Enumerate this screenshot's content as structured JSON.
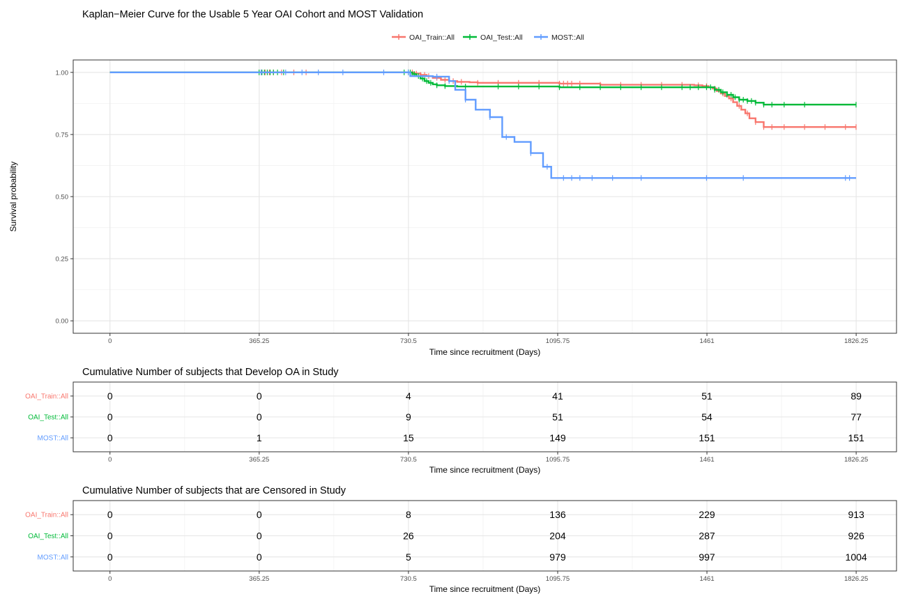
{
  "figure": {
    "title": "Kaplan−Meier Curve for the Usable 5 Year OAI Cohort and MOST Validation"
  },
  "colors": {
    "OAI_Train": "#F8766D",
    "OAI_Test": "#00BA38",
    "MOST": "#619CFF"
  },
  "chart_data": [
    {
      "type": "line",
      "title": "Kaplan−Meier Curve for the Usable 5 Year OAI Cohort and MOST Validation",
      "xlabel": "Time since recruitment (Days)",
      "ylabel": "Survival probability",
      "xlim": [
        -90,
        1925
      ],
      "ylim": [
        -0.05,
        1.05
      ],
      "x_ticks": [
        0,
        365.25,
        730.5,
        1095.75,
        1461,
        1826.25
      ],
      "x_tick_labels": [
        "0",
        "365.25",
        "730.5",
        "1095.75",
        "1461",
        "1826.25"
      ],
      "y_ticks": [
        0,
        0.25,
        0.5,
        0.75,
        1.0
      ],
      "y_tick_labels": [
        "0.00",
        "0.25",
        "0.50",
        "0.75",
        "1.00"
      ],
      "grid": true,
      "legend_position": "top",
      "series": [
        {
          "name": "OAI_Train::All",
          "step_x": [
            0,
            730,
            745,
            760,
            775,
            790,
            810,
            830,
            850,
            880,
            900,
            1100,
            1200,
            1430,
            1450,
            1465,
            1475,
            1485,
            1495,
            1505,
            1515,
            1525,
            1535,
            1545,
            1555,
            1565,
            1580,
            1600,
            1826
          ],
          "step_y": [
            1.0,
            1.0,
            0.995,
            0.99,
            0.985,
            0.978,
            0.97,
            0.965,
            0.962,
            0.96,
            0.958,
            0.955,
            0.95,
            0.948,
            0.945,
            0.94,
            0.935,
            0.925,
            0.915,
            0.905,
            0.895,
            0.88,
            0.865,
            0.85,
            0.835,
            0.815,
            0.8,
            0.78,
            0.78
          ],
          "censor_x": [
            370,
            380,
            390,
            400,
            420,
            450,
            480,
            740,
            750,
            760,
            770,
            780,
            800,
            820,
            840,
            860,
            900,
            950,
            1000,
            1050,
            1100,
            1110,
            1120,
            1130,
            1150,
            1200,
            1250,
            1300,
            1350,
            1400,
            1440,
            1460,
            1480,
            1500,
            1520,
            1540,
            1560,
            1580,
            1600,
            1620,
            1650,
            1700,
            1750,
            1800,
            1826
          ]
        },
        {
          "name": "OAI_Test::All",
          "step_x": [
            0,
            730,
            740,
            750,
            760,
            770,
            780,
            790,
            800,
            820,
            850,
            1100,
            1460,
            1480,
            1495,
            1510,
            1525,
            1540,
            1560,
            1580,
            1600,
            1826
          ],
          "step_y": [
            1.0,
            1.0,
            0.993,
            0.985,
            0.975,
            0.965,
            0.958,
            0.952,
            0.948,
            0.945,
            0.943,
            0.94,
            0.94,
            0.93,
            0.92,
            0.91,
            0.9,
            0.89,
            0.885,
            0.878,
            0.87,
            0.87
          ],
          "censor_x": [
            365,
            372,
            378,
            385,
            392,
            400,
            410,
            425,
            720,
            730,
            735,
            745,
            755,
            765,
            775,
            785,
            800,
            820,
            870,
            950,
            1000,
            1050,
            1100,
            1150,
            1200,
            1250,
            1300,
            1350,
            1400,
            1420,
            1440,
            1460,
            1470,
            1480,
            1490,
            1500,
            1510,
            1520,
            1530,
            1540,
            1550,
            1560,
            1570,
            1580,
            1600,
            1620,
            1650,
            1700,
            1826
          ]
        },
        {
          "name": "MOST::All",
          "step_x": [
            0,
            735,
            790,
            830,
            845,
            870,
            895,
            930,
            960,
            990,
            1030,
            1060,
            1080,
            1826
          ],
          "step_y": [
            1.0,
            0.985,
            0.983,
            0.965,
            0.93,
            0.89,
            0.85,
            0.82,
            0.74,
            0.72,
            0.675,
            0.62,
            0.575,
            0.575
          ],
          "censor_x": [
            370,
            430,
            470,
            510,
            570,
            670,
            730,
            800,
            830,
            870,
            930,
            970,
            1030,
            1070,
            1110,
            1130,
            1150,
            1180,
            1230,
            1300,
            1460,
            1550,
            1800,
            1810
          ]
        }
      ]
    },
    {
      "type": "table",
      "title": "Cumulative Number of subjects that Develop OA in Study",
      "xlabel": "Time since recruitment (Days)",
      "x": [
        0,
        365.25,
        730.5,
        1095.75,
        1461,
        1826.25
      ],
      "x_tick_labels": [
        "0",
        "365.25",
        "730.5",
        "1095.75",
        "1461",
        "1826.25"
      ],
      "rows": [
        {
          "name": "OAI_Train::All",
          "values": [
            "0",
            "0",
            "4",
            "41",
            "51",
            "89"
          ]
        },
        {
          "name": "OAI_Test::All",
          "values": [
            "0",
            "0",
            "9",
            "51",
            "54",
            "77"
          ]
        },
        {
          "name": "MOST::All",
          "values": [
            "0",
            "1",
            "15",
            "149",
            "151",
            "151"
          ]
        }
      ]
    },
    {
      "type": "table",
      "title": "Cumulative Number of subjects that are Censored in Study",
      "xlabel": "Time since recruitment (Days)",
      "x": [
        0,
        365.25,
        730.5,
        1095.75,
        1461,
        1826.25
      ],
      "x_tick_labels": [
        "0",
        "365.25",
        "730.5",
        "1095.75",
        "1461",
        "1826.25"
      ],
      "rows": [
        {
          "name": "OAI_Train::All",
          "values": [
            "0",
            "0",
            "8",
            "136",
            "229",
            "913"
          ]
        },
        {
          "name": "OAI_Test::All",
          "values": [
            "0",
            "0",
            "26",
            "204",
            "287",
            "926"
          ]
        },
        {
          "name": "MOST::All",
          "values": [
            "0",
            "0",
            "5",
            "979",
            "997",
            "1004"
          ]
        }
      ]
    }
  ]
}
